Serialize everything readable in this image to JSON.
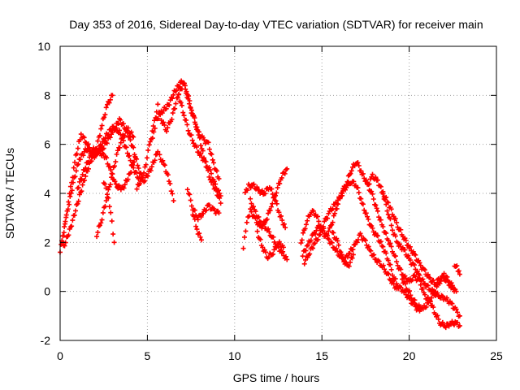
{
  "chart_data": {
    "type": "scatter",
    "title": "Day 353 of 2016, Sidereal Day-to-day VTEC variation (SDTVAR) for receiver main",
    "xlabel": "GPS time / hours",
    "ylabel": "SDTVAR / TECUs",
    "xlim": [
      0,
      25
    ],
    "ylim": [
      -2,
      10
    ],
    "xticks": [
      0,
      5,
      10,
      15,
      20,
      25
    ],
    "yticks": [
      -2,
      0,
      2,
      4,
      6,
      8,
      10
    ],
    "grid": true,
    "marker": "+",
    "series": [
      {
        "name": "SDTVAR",
        "color": "#ff0000",
        "tracks": [
          [
            [
              0.0,
              1.6
            ],
            [
              0.3,
              2.8
            ],
            [
              0.6,
              4.2
            ],
            [
              0.9,
              5.5
            ],
            [
              1.2,
              6.4
            ],
            [
              1.5,
              6.1
            ],
            [
              1.8,
              5.7
            ],
            [
              2.1,
              5.9
            ],
            [
              2.4,
              6.8
            ],
            [
              2.7,
              7.6
            ],
            [
              3.0,
              8.0
            ]
          ],
          [
            [
              0.1,
              2.0
            ],
            [
              0.4,
              3.2
            ],
            [
              0.8,
              4.6
            ],
            [
              1.1,
              5.4
            ],
            [
              1.5,
              5.8
            ],
            [
              2.0,
              5.6
            ],
            [
              2.5,
              5.9
            ],
            [
              3.0,
              6.5
            ],
            [
              3.4,
              7.0
            ],
            [
              3.8,
              6.6
            ],
            [
              4.2,
              5.8
            ],
            [
              4.5,
              5.0
            ],
            [
              4.8,
              4.5
            ],
            [
              5.2,
              5.0
            ],
            [
              5.6,
              5.7
            ]
          ],
          [
            [
              0.2,
              1.8
            ],
            [
              0.6,
              2.6
            ],
            [
              1.0,
              3.6
            ],
            [
              1.4,
              4.6
            ],
            [
              1.8,
              5.4
            ],
            [
              2.2,
              5.7
            ],
            [
              2.6,
              5.5
            ],
            [
              2.9,
              4.9
            ],
            [
              3.2,
              4.3
            ],
            [
              3.6,
              4.2
            ],
            [
              4.0,
              4.8
            ],
            [
              4.3,
              5.5
            ]
          ],
          [
            [
              1.0,
              4.2
            ],
            [
              1.4,
              5.0
            ],
            [
              1.8,
              5.6
            ],
            [
              2.2,
              5.8
            ],
            [
              2.6,
              6.3
            ],
            [
              3.0,
              6.7
            ],
            [
              3.4,
              6.5
            ],
            [
              3.8,
              5.8
            ],
            [
              4.2,
              5.0
            ],
            [
              4.6,
              4.5
            ]
          ],
          [
            [
              2.1,
              2.3
            ],
            [
              2.4,
              3.0
            ],
            [
              2.7,
              3.9
            ],
            [
              3.0,
              4.8
            ],
            [
              3.3,
              5.7
            ],
            [
              3.6,
              6.3
            ],
            [
              3.9,
              6.6
            ],
            [
              4.2,
              6.3
            ]
          ],
          [
            [
              2.5,
              4.5
            ],
            [
              2.7,
              4.0
            ],
            [
              2.9,
              3.2
            ],
            [
              3.1,
              2.0
            ]
          ],
          [
            [
              4.4,
              4.2
            ],
            [
              4.8,
              4.8
            ],
            [
              5.1,
              5.9
            ],
            [
              5.4,
              6.9
            ],
            [
              5.6,
              7.6
            ],
            [
              5.8,
              7.0
            ],
            [
              6.1,
              6.6
            ],
            [
              6.4,
              7.1
            ],
            [
              6.8,
              8.1
            ],
            [
              7.1,
              8.5
            ],
            [
              7.4,
              7.6
            ],
            [
              7.7,
              7.0
            ],
            [
              8.0,
              6.2
            ],
            [
              8.3,
              5.3
            ],
            [
              8.6,
              4.6
            ],
            [
              9.0,
              4.0
            ],
            [
              9.2,
              3.6
            ]
          ],
          [
            [
              5.3,
              6.2
            ],
            [
              5.5,
              7.0
            ],
            [
              5.8,
              7.3
            ],
            [
              6.2,
              7.6
            ],
            [
              6.6,
              8.2
            ],
            [
              7.0,
              8.6
            ],
            [
              7.3,
              8.1
            ],
            [
              7.6,
              7.2
            ],
            [
              7.9,
              6.5
            ],
            [
              8.2,
              6.2
            ],
            [
              8.5,
              6.0
            ],
            [
              8.8,
              5.2
            ],
            [
              9.1,
              4.6
            ]
          ],
          [
            [
              5.7,
              5.5
            ],
            [
              6.0,
              5.1
            ],
            [
              6.3,
              4.4
            ],
            [
              6.5,
              3.7
            ]
          ],
          [
            [
              6.8,
              8.0
            ],
            [
              7.1,
              7.2
            ],
            [
              7.4,
              6.5
            ],
            [
              7.7,
              6.0
            ],
            [
              8.0,
              5.6
            ],
            [
              8.3,
              5.3
            ],
            [
              8.6,
              4.9
            ],
            [
              8.9,
              4.3
            ],
            [
              9.2,
              3.9
            ]
          ],
          [
            [
              7.3,
              4.2
            ],
            [
              7.6,
              3.4
            ],
            [
              7.9,
              3.0
            ],
            [
              8.2,
              3.2
            ],
            [
              8.5,
              3.5
            ],
            [
              8.8,
              3.3
            ],
            [
              9.1,
              3.2
            ]
          ],
          [
            [
              7.6,
              3.2
            ],
            [
              7.9,
              2.4
            ],
            [
              8.1,
              2.1
            ]
          ],
          [
            [
              10.5,
              1.8
            ],
            [
              10.7,
              2.8
            ],
            [
              10.9,
              3.3
            ],
            [
              11.2,
              2.9
            ],
            [
              11.5,
              2.6
            ],
            [
              11.8,
              2.9
            ],
            [
              12.1,
              3.5
            ],
            [
              12.4,
              4.1
            ],
            [
              12.7,
              4.7
            ],
            [
              13.0,
              5.0
            ]
          ],
          [
            [
              10.6,
              4.0
            ],
            [
              10.8,
              4.3
            ],
            [
              11.1,
              4.3
            ],
            [
              11.4,
              4.1
            ],
            [
              11.7,
              4.0
            ],
            [
              12.0,
              4.3
            ],
            [
              12.3,
              3.8
            ],
            [
              12.6,
              3.1
            ],
            [
              12.9,
              2.6
            ]
          ],
          [
            [
              10.9,
              3.7
            ],
            [
              11.2,
              3.2
            ],
            [
              11.5,
              2.8
            ],
            [
              11.8,
              2.6
            ],
            [
              12.1,
              2.3
            ],
            [
              12.4,
              1.9
            ],
            [
              12.7,
              1.6
            ],
            [
              13.0,
              1.3
            ]
          ],
          [
            [
              11.3,
              2.4
            ],
            [
              11.6,
              1.8
            ],
            [
              11.9,
              1.4
            ],
            [
              12.2,
              1.6
            ],
            [
              12.5,
              2.0
            ],
            [
              12.8,
              1.8
            ]
          ],
          [
            [
              13.8,
              2.0
            ],
            [
              14.1,
              2.8
            ],
            [
              14.4,
              3.3
            ],
            [
              14.7,
              3.1
            ],
            [
              15.0,
              2.5
            ],
            [
              15.2,
              2.2
            ],
            [
              15.5,
              2.6
            ],
            [
              15.8,
              3.3
            ],
            [
              16.1,
              4.0
            ],
            [
              16.4,
              4.4
            ],
            [
              16.7,
              5.0
            ],
            [
              17.0,
              5.3
            ],
            [
              17.3,
              4.8
            ],
            [
              17.6,
              4.4
            ],
            [
              17.9,
              3.9
            ],
            [
              18.2,
              3.2
            ],
            [
              18.5,
              2.6
            ],
            [
              18.8,
              2.1
            ],
            [
              19.1,
              1.6
            ],
            [
              19.4,
              1.0
            ],
            [
              19.7,
              0.6
            ],
            [
              20.0,
              0.4
            ],
            [
              20.3,
              0.6
            ],
            [
              20.6,
              0.4
            ],
            [
              20.9,
              -0.2
            ],
            [
              21.2,
              -0.4
            ],
            [
              21.5,
              -0.9
            ],
            [
              21.8,
              -1.3
            ],
            [
              22.1,
              -1.4
            ],
            [
              22.4,
              -1.3
            ],
            [
              22.7,
              -1.3
            ],
            [
              22.9,
              -1.4
            ]
          ],
          [
            [
              14.0,
              1.2
            ],
            [
              14.3,
              1.6
            ],
            [
              14.6,
              2.0
            ],
            [
              14.9,
              2.3
            ],
            [
              15.2,
              2.9
            ],
            [
              15.5,
              3.3
            ],
            [
              15.8,
              3.6
            ],
            [
              16.1,
              3.9
            ],
            [
              16.4,
              4.3
            ],
            [
              16.7,
              4.5
            ],
            [
              17.0,
              4.3
            ],
            [
              17.3,
              3.6
            ],
            [
              17.6,
              3.0
            ],
            [
              17.9,
              2.5
            ],
            [
              18.2,
              2.2
            ],
            [
              18.5,
              1.8
            ],
            [
              18.8,
              1.3
            ],
            [
              19.1,
              0.6
            ],
            [
              19.4,
              0.2
            ],
            [
              19.7,
              0.0
            ],
            [
              20.0,
              -0.3
            ],
            [
              20.3,
              -0.6
            ],
            [
              20.6,
              -0.8
            ]
          ],
          [
            [
              13.9,
              1.5
            ],
            [
              14.2,
              1.9
            ],
            [
              14.5,
              2.3
            ],
            [
              14.8,
              2.6
            ],
            [
              15.1,
              2.5
            ],
            [
              15.4,
              2.1
            ],
            [
              15.7,
              1.8
            ],
            [
              16.0,
              1.5
            ],
            [
              16.3,
              1.3
            ],
            [
              16.6,
              1.6
            ],
            [
              16.9,
              1.9
            ],
            [
              17.2,
              2.3
            ],
            [
              17.5,
              2.0
            ],
            [
              17.8,
              1.6
            ],
            [
              18.1,
              1.3
            ],
            [
              18.4,
              1.1
            ],
            [
              18.7,
              0.8
            ],
            [
              19.0,
              0.4
            ],
            [
              19.3,
              0.1
            ]
          ],
          [
            [
              15.6,
              2.4
            ],
            [
              15.9,
              2.0
            ],
            [
              16.2,
              1.3
            ],
            [
              16.5,
              1.0
            ],
            [
              16.8,
              1.5
            ]
          ],
          [
            [
              17.6,
              4.3
            ],
            [
              17.9,
              4.7
            ],
            [
              18.2,
              4.5
            ],
            [
              18.5,
              4.0
            ],
            [
              18.8,
              3.2
            ],
            [
              19.1,
              2.4
            ],
            [
              19.4,
              1.9
            ],
            [
              19.7,
              1.7
            ],
            [
              20.0,
              1.3
            ],
            [
              20.3,
              1.0
            ],
            [
              20.6,
              0.6
            ],
            [
              20.9,
              0.3
            ],
            [
              21.2,
              0.1
            ],
            [
              21.5,
              -0.1
            ],
            [
              21.8,
              -0.2
            ],
            [
              22.1,
              -0.3
            ],
            [
              22.4,
              -0.5
            ],
            [
              22.7,
              -0.8
            ],
            [
              22.9,
              -1.0
            ]
          ],
          [
            [
              18.5,
              4.0
            ],
            [
              18.8,
              3.6
            ],
            [
              19.1,
              3.1
            ],
            [
              19.4,
              2.6
            ],
            [
              19.7,
              2.2
            ],
            [
              20.0,
              1.8
            ],
            [
              20.3,
              1.5
            ],
            [
              20.6,
              1.1
            ],
            [
              20.9,
              0.8
            ],
            [
              21.2,
              0.5
            ],
            [
              21.5,
              0.3
            ],
            [
              21.8,
              0.6
            ],
            [
              22.1,
              0.5
            ],
            [
              22.4,
              0.2
            ],
            [
              22.7,
              0.0
            ]
          ],
          [
            [
              19.6,
              0.5
            ],
            [
              19.9,
              0.1
            ],
            [
              20.2,
              -0.3
            ],
            [
              20.5,
              -0.6
            ],
            [
              20.8,
              -0.7
            ],
            [
              21.1,
              -0.5
            ],
            [
              21.4,
              -0.1
            ],
            [
              21.7,
              0.3
            ],
            [
              22.0,
              0.7
            ],
            [
              22.3,
              0.4
            ],
            [
              22.6,
              0.1
            ]
          ],
          [
            [
              22.6,
              1.1
            ],
            [
              22.8,
              0.9
            ],
            [
              22.9,
              0.7
            ]
          ]
        ]
      }
    ]
  }
}
